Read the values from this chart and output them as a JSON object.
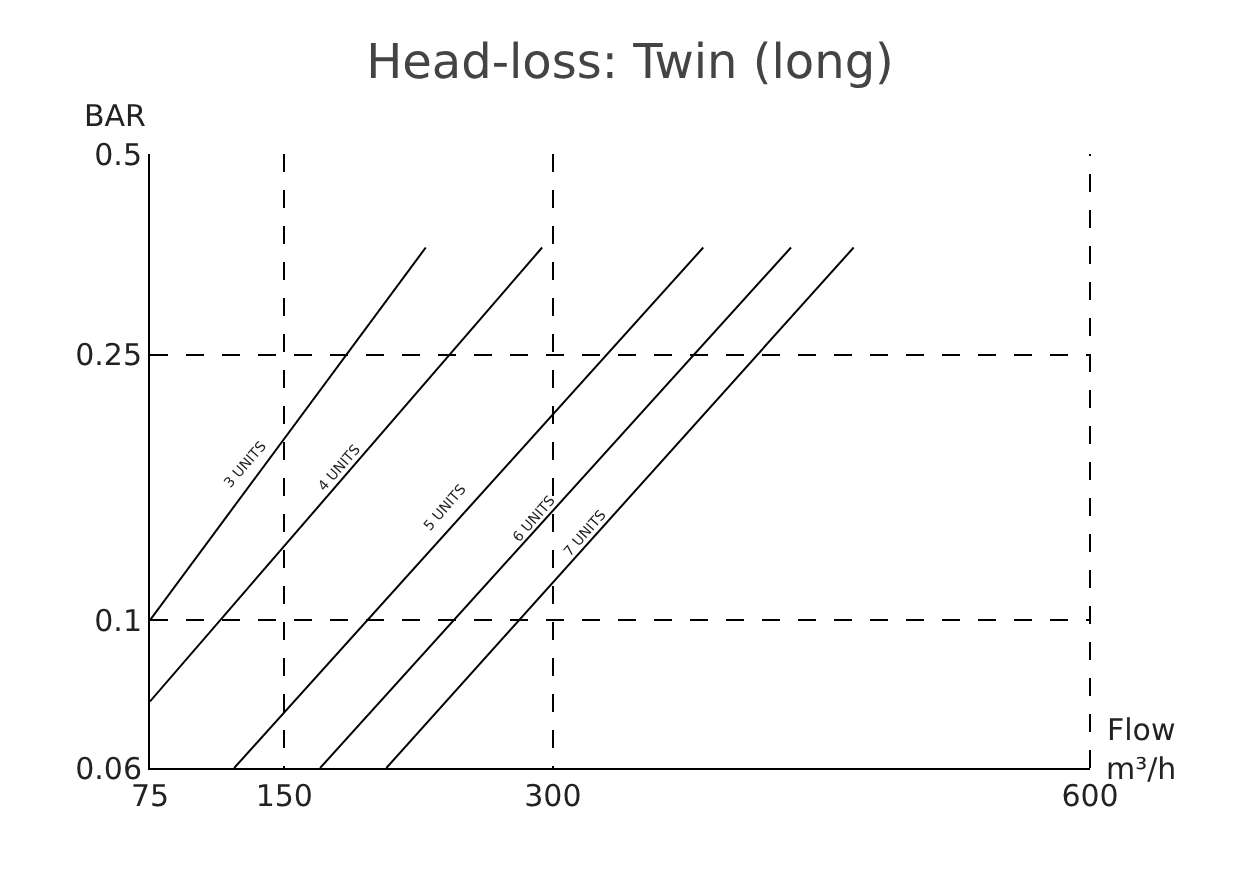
{
  "chart_data": {
    "type": "line",
    "title": "Head-loss: Twin (long)",
    "xlabel": "Flow m³/h",
    "ylabel": "BAR",
    "series": [
      {
        "color": "#000000",
        "x": [
          75,
          229
        ],
        "values": [
          0.1,
          0.362
        ]
      },
      {
        "color": "#000000",
        "x": [
          75,
          294
        ],
        "values": [
          0.0755,
          0.362
        ]
      },
      {
        "color": "#000000",
        "x": [
          122,
          384
        ],
        "values": [
          0.06,
          0.362
        ]
      },
      {
        "color": "#000000",
        "x": [
          170,
          433
        ],
        "values": [
          0.06,
          0.362
        ]
      },
      {
        "color": "#000000",
        "x": [
          207,
          468
        ],
        "values": [
          0.06,
          0.362
        ]
      }
    ],
    "annotations": [
      {
        "text": "3 UNITS",
        "x": 129,
        "y": 0.164
      },
      {
        "text": "4 UNITS",
        "x": 181,
        "y": 0.162
      },
      {
        "text": "5 UNITS",
        "x": 240,
        "y": 0.141
      },
      {
        "text": "6 UNITS",
        "x": 289,
        "y": 0.136
      },
      {
        "text": "7 UNITS",
        "x": 318,
        "y": 0.129
      }
    ],
    "xlim": [
      75,
      600
    ],
    "xticks": [
      75,
      150,
      300,
      600
    ],
    "ylim": [
      0.06,
      0.5
    ],
    "yticks": [
      0.06,
      0.1,
      0.25,
      0.5
    ],
    "log": "y",
    "grid": true,
    "line_style": "solid",
    "marker": "none"
  }
}
